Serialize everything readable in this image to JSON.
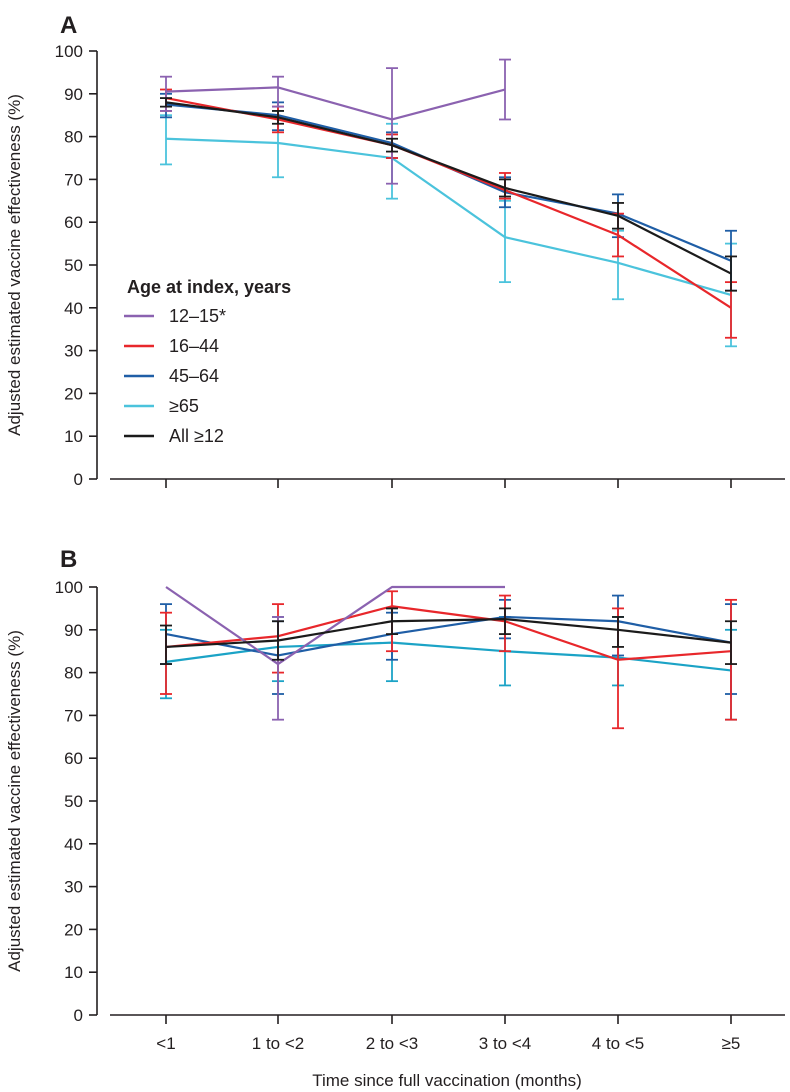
{
  "figure": {
    "xlabel": "Time since full vaccination (months)"
  },
  "chart_data": [
    {
      "type": "line",
      "panel": "A",
      "title": "",
      "ylabel": "Adjusted estimated vaccine effectiveness (%)",
      "xlabel": "Time since full vaccination (months)",
      "categories": [
        "<1",
        "1 to <2",
        "2 to <3",
        "3 to <4",
        "4 to <5",
        "≥5"
      ],
      "ylim": [
        0,
        100
      ],
      "yticks": [
        0,
        10,
        20,
        30,
        40,
        50,
        60,
        70,
        80,
        90,
        100
      ],
      "legend": {
        "title": "Age at index, years",
        "placement": "bottom-left"
      },
      "error_bars": true,
      "series": [
        {
          "name": "12–15*",
          "color": "#8b62b0",
          "values": [
            90.5,
            91.5,
            84,
            91,
            null,
            null
          ],
          "lower": [
            86,
            87,
            69,
            84,
            null,
            null
          ],
          "upper": [
            94,
            94,
            96,
            98,
            null,
            null
          ]
        },
        {
          "name": "16–44",
          "color": "#e8272b",
          "values": [
            89,
            84,
            78,
            67.5,
            57,
            40
          ],
          "lower": [
            86,
            81,
            75,
            65.5,
            52,
            33
          ],
          "upper": [
            91,
            87,
            80.5,
            71.5,
            62,
            46
          ]
        },
        {
          "name": "45–64",
          "color": "#1f5ea6",
          "values": [
            87.5,
            85,
            78.5,
            67,
            62,
            51
          ],
          "lower": [
            84.5,
            81.5,
            75,
            63.5,
            56.5,
            44
          ],
          "upper": [
            90,
            88,
            81,
            70.5,
            66.5,
            58
          ]
        },
        {
          "name": "≥65",
          "color": "#4bc3dc",
          "values": [
            79.5,
            78.5,
            75,
            56.5,
            50.5,
            43
          ],
          "lower": [
            73.5,
            70.5,
            65.5,
            46,
            42,
            31
          ],
          "upper": [
            85,
            86,
            83,
            65,
            58,
            55
          ]
        },
        {
          "name": "All ≥12",
          "color": "#1b1b1b",
          "values": [
            88,
            84.5,
            78,
            68,
            61.5,
            48
          ],
          "lower": [
            87,
            83,
            76.5,
            66,
            58.5,
            44
          ],
          "upper": [
            89,
            86,
            79.5,
            70,
            64.5,
            52
          ]
        }
      ]
    },
    {
      "type": "line",
      "panel": "B",
      "title": "",
      "ylabel": "Adjusted estimated vaccine effectiveness (%)",
      "xlabel": "Time since full vaccination (months)",
      "categories": [
        "<1",
        "1 to <2",
        "2 to <3",
        "3 to <4",
        "4 to <5",
        "≥5"
      ],
      "ylim": [
        0,
        100
      ],
      "yticks": [
        0,
        10,
        20,
        30,
        40,
        50,
        60,
        70,
        80,
        90,
        100
      ],
      "error_bars": true,
      "series": [
        {
          "name": "12–15*",
          "color": "#8b62b0",
          "values": [
            100,
            82,
            100,
            100,
            null,
            null
          ],
          "lower": [
            null,
            69,
            null,
            null,
            null,
            null
          ],
          "upper": [
            null,
            93,
            null,
            null,
            null,
            null
          ]
        },
        {
          "name": "16–44",
          "color": "#e8272b",
          "values": [
            86,
            88.5,
            95.5,
            92,
            83,
            85
          ],
          "lower": [
            75,
            80,
            85,
            85,
            67,
            69
          ],
          "upper": [
            94,
            96,
            99,
            98,
            95,
            97
          ]
        },
        {
          "name": "45–64",
          "color": "#1f5ea6",
          "values": [
            89,
            84,
            89,
            93,
            92,
            87
          ],
          "lower": [
            82,
            75,
            83,
            88,
            84,
            75
          ],
          "upper": [
            96,
            92,
            94,
            97,
            98,
            96
          ]
        },
        {
          "name": "≥65",
          "color": "#1ba3c6",
          "values": [
            82.5,
            86,
            87,
            85,
            83.5,
            80.5
          ],
          "lower": [
            74,
            78,
            78,
            77,
            77,
            69
          ],
          "upper": [
            90,
            93,
            95,
            93,
            93,
            90
          ]
        },
        {
          "name": "All ≥12",
          "color": "#1b1b1b",
          "values": [
            86,
            87.5,
            92,
            92.5,
            90,
            87
          ],
          "lower": [
            82,
            83,
            89,
            89,
            86,
            82
          ],
          "upper": [
            91,
            92,
            95,
            95,
            93,
            92
          ]
        }
      ]
    }
  ]
}
